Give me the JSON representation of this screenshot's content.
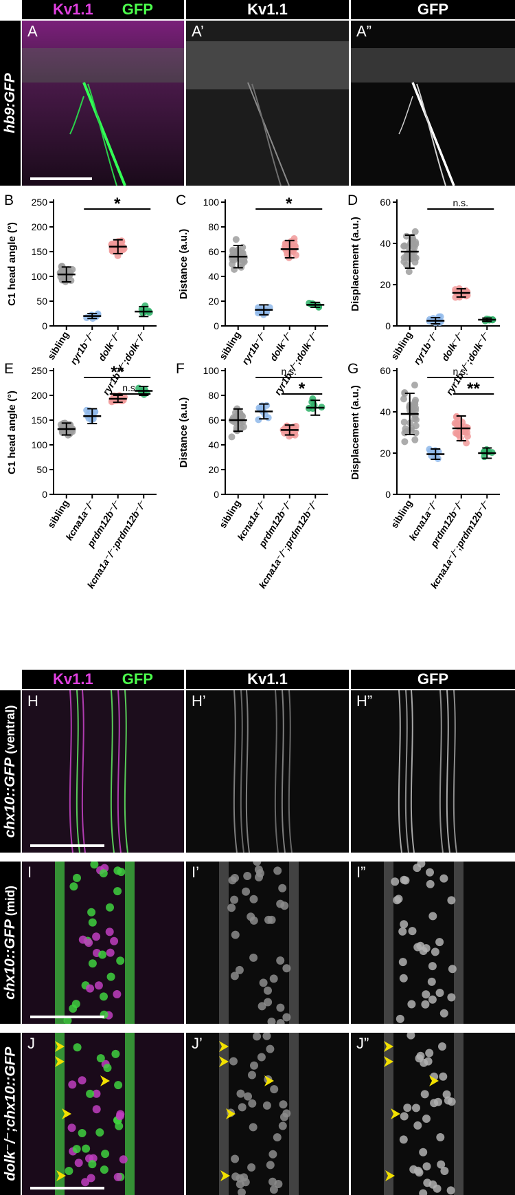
{
  "top_block": {
    "headers": {
      "merge_kv": "Kv1.1",
      "merge_gfp": "GFP",
      "single_kv": "Kv1.1",
      "single_gfp": "GFP"
    },
    "side_label": "hb9:GFP",
    "panels": [
      "A",
      "A’",
      "A”"
    ]
  },
  "bottom_block": {
    "headers": {
      "merge_kv": "Kv1.1",
      "merge_gfp": "GFP",
      "single_kv": "Kv1.1",
      "single_gfp": "GFP"
    },
    "rows": [
      {
        "side_label": "chx10::GFP",
        "side_suffix": " (ventral)",
        "panels": [
          "H",
          "H’",
          "H”"
        ]
      },
      {
        "side_label": "chx10::GFP",
        "side_suffix": " (mid)",
        "panels": [
          "I",
          "I’",
          "I”"
        ]
      },
      {
        "side_label": "dolk⁻/⁻;chx10::GFP",
        "side_suffix": "",
        "panels": [
          "J",
          "J’",
          "J”"
        ]
      }
    ]
  },
  "colors": {
    "sibling": "#9e9e9e",
    "blue": "#8fb8ea",
    "pink": "#f19a9a",
    "green": "#2fb36a",
    "magenta": "#e040e0",
    "gfp_green": "#4cff4c",
    "arrowhead": "#f2e000"
  },
  "chart_data": [
    {
      "panel": "B",
      "type": "scatter",
      "ylabel": "C1 head angle (°)",
      "ylim": [
        0,
        250
      ],
      "yticks": [
        0,
        50,
        100,
        150,
        200,
        250
      ],
      "categories": [
        "sibling",
        "ryr1b⁻/⁻",
        "dolk⁻/⁻",
        "ryr1b⁻/⁻;dolk⁻/⁻"
      ],
      "means": [
        104,
        20,
        160,
        29
      ],
      "sd": [
        15,
        5,
        14,
        10
      ],
      "sig": [
        {
          "from": 1,
          "to": 3,
          "label": "*"
        }
      ]
    },
    {
      "panel": "C",
      "type": "scatter",
      "ylabel": "Distance (a.u.)",
      "ylim": [
        0,
        100
      ],
      "yticks": [
        0,
        20,
        40,
        60,
        80,
        100
      ],
      "categories": [
        "sibling",
        "ryr1b⁻/⁻",
        "dolk⁻/⁻",
        "ryr1b⁻/⁻;dolk⁻/⁻"
      ],
      "means": [
        56,
        13,
        62,
        17
      ],
      "sd": [
        9,
        4,
        7,
        2
      ],
      "sig": [
        {
          "from": 1,
          "to": 3,
          "label": "*"
        }
      ]
    },
    {
      "panel": "D",
      "type": "scatter",
      "ylabel": "Displacement (a.u.)",
      "ylim": [
        0,
        60
      ],
      "yticks": [
        0,
        20,
        40,
        60
      ],
      "categories": [
        "sibling",
        "ryr1b⁻/⁻",
        "dolk⁻/⁻",
        "ryr1b⁻/⁻;dolk⁻/⁻"
      ],
      "means": [
        36,
        2.5,
        16,
        3
      ],
      "sd": [
        8,
        1.5,
        2,
        0.8
      ],
      "sig": [
        {
          "from": 1,
          "to": 3,
          "label": "n.s."
        }
      ]
    },
    {
      "panel": "E",
      "type": "scatter",
      "ylabel": "C1 head angle (°)",
      "ylim": [
        0,
        250
      ],
      "yticks": [
        0,
        50,
        100,
        150,
        200,
        250
      ],
      "categories": [
        "sibling",
        "kcna1a⁻/⁻",
        "prdm12b⁻/⁻",
        "kcna1a⁻/⁻;prdm12b⁻/⁻"
      ],
      "means": [
        132,
        158,
        193,
        209
      ],
      "sd": [
        12,
        15,
        7,
        9
      ],
      "sig": [
        {
          "from": 1,
          "to": 3,
          "label": "**",
          "level": 0
        },
        {
          "from": 2,
          "to": 3,
          "label": "n.s.",
          "level": 1
        }
      ]
    },
    {
      "panel": "F",
      "type": "scatter",
      "ylabel": "Distance (a.u.)",
      "ylim": [
        0,
        100
      ],
      "yticks": [
        0,
        20,
        40,
        60,
        80,
        100
      ],
      "categories": [
        "sibling",
        "kcna1a⁻/⁻",
        "prdm12b⁻/⁻",
        "kcna1a⁻/⁻;prdm12b⁻/⁻"
      ],
      "means": [
        60,
        67,
        52,
        70
      ],
      "sd": [
        9,
        6,
        4,
        6
      ],
      "sig": [
        {
          "from": 1,
          "to": 3,
          "label": "n.s.",
          "level": 0
        },
        {
          "from": 2,
          "to": 3,
          "label": "*",
          "level": 1
        }
      ]
    },
    {
      "panel": "G",
      "type": "scatter",
      "ylabel": "Displacement (a.u.)",
      "ylim": [
        0,
        60
      ],
      "yticks": [
        0,
        20,
        40,
        60
      ],
      "categories": [
        "sibling",
        "kcna1a⁻/⁻",
        "prdm12b⁻/⁻",
        "kcna1a⁻/⁻;prdm12b⁻/⁻"
      ],
      "means": [
        39,
        19.5,
        32,
        20
      ],
      "sd": [
        10,
        2.5,
        6,
        2.5
      ],
      "sig": [
        {
          "from": 1,
          "to": 3,
          "label": "n.s.",
          "level": 0
        },
        {
          "from": 2,
          "to": 3,
          "label": "**",
          "level": 1
        }
      ]
    }
  ]
}
